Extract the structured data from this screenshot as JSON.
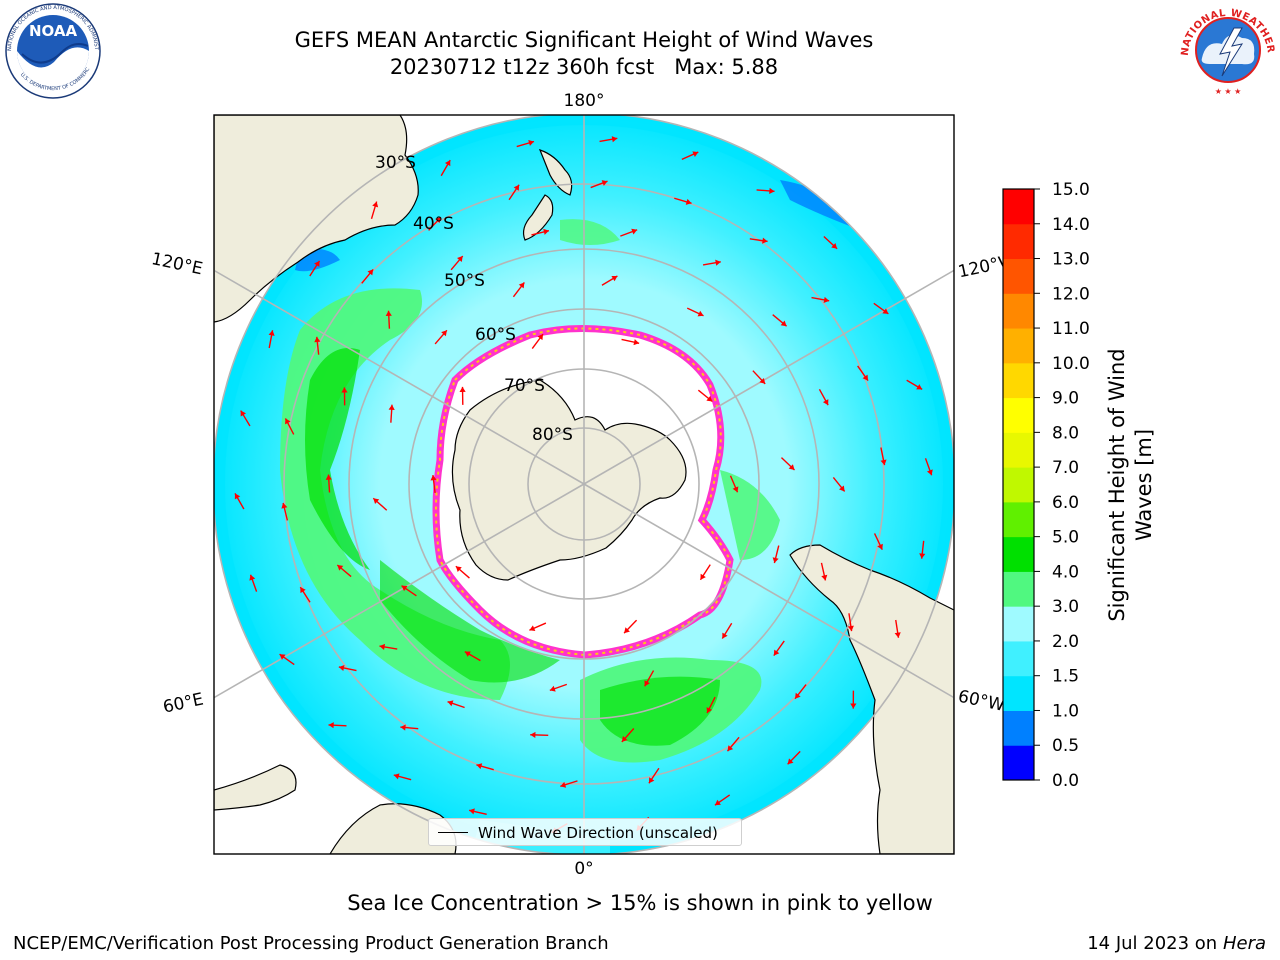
{
  "title": {
    "line1": "GEFS MEAN Antarctic Significant Height of Wind Waves",
    "line2": "20230712 t12z 360h fcst   Max: 5.88"
  },
  "logos": {
    "left": {
      "name": "NOARA logo",
      "text": "NOAA",
      "ring_text": "NATIONAL OCEANIC AND ATMOSPHERIC ADMINISTRATION",
      "bottom_text": "U.S. DEPARTMENT OF COMMERCE"
    },
    "right": {
      "name": "National Weather Service logo",
      "ring_text": "NATIONAL WEATHER SERVICE"
    }
  },
  "map": {
    "projection": "south polar stereographic",
    "meridian_labels": {
      "top": "180°",
      "bottom": "0°",
      "left_upper": "120°E",
      "left_lower": "60°E",
      "right_upper": "120°W",
      "right_lower": "60°W"
    },
    "parallel_labels": [
      "30°S",
      "40°S",
      "50°S",
      "60°S",
      "70°S",
      "80°S"
    ],
    "colors": {
      "land": "#efeddc",
      "sea_ice": "#ffffff",
      "ice_edge": "#ff33cc",
      "arrows": "#ff0000",
      "grid": "#b5b5b5"
    },
    "legend": {
      "label": "Wind Wave Direction (unscaled)"
    }
  },
  "colorbar": {
    "title_line1": "Significant Height of Wind",
    "title_line2": "Waves [m]",
    "ticks": [
      "0.0",
      "0.5",
      "1.0",
      "1.5",
      "2.0",
      "3.0",
      "4.0",
      "5.0",
      "6.0",
      "7.0",
      "8.0",
      "9.0",
      "10.0",
      "11.0",
      "12.0",
      "13.0",
      "14.0",
      "15.0"
    ],
    "colors": [
      "#0000ff",
      "#0080ff",
      "#00e5ff",
      "#40f0ff",
      "#9ffaff",
      "#50f880",
      "#00e000",
      "#60f000",
      "#c0f800",
      "#e8f800",
      "#ffff00",
      "#ffd800",
      "#ffb000",
      "#ff8800",
      "#ff5500",
      "#ff2a00",
      "#ff0000"
    ]
  },
  "chart_data": {
    "type": "heatmap",
    "field": "Significant Height of Wind Waves",
    "units": "m",
    "max_value": 5.88,
    "color_levels": [
      0.0,
      0.5,
      1.0,
      1.5,
      2.0,
      3.0,
      4.0,
      5.0,
      6.0,
      7.0,
      8.0,
      9.0,
      10.0,
      11.0,
      12.0,
      13.0,
      14.0,
      15.0
    ],
    "regions": [
      {
        "area": "Southern Indian Ocean 60°E-120°E",
        "range": [
          3.0,
          5.0
        ]
      },
      {
        "area": "South Atlantic near 0°-30°W",
        "range": [
          3.0,
          5.0
        ]
      },
      {
        "area": "Antarctic circumpolar belt",
        "range": [
          2.0,
          3.0
        ]
      },
      {
        "area": "Subtropics north of 40°S",
        "range": [
          1.0,
          2.0
        ]
      }
    ]
  },
  "footer": {
    "subcaption": "Sea Ice Concentration > 15% is shown in pink to yellow",
    "left": "NCEP/EMC/Verification Post Processing Product Generation Branch",
    "right_date": "14 Jul 2023 on ",
    "right_machine": "Hera"
  }
}
